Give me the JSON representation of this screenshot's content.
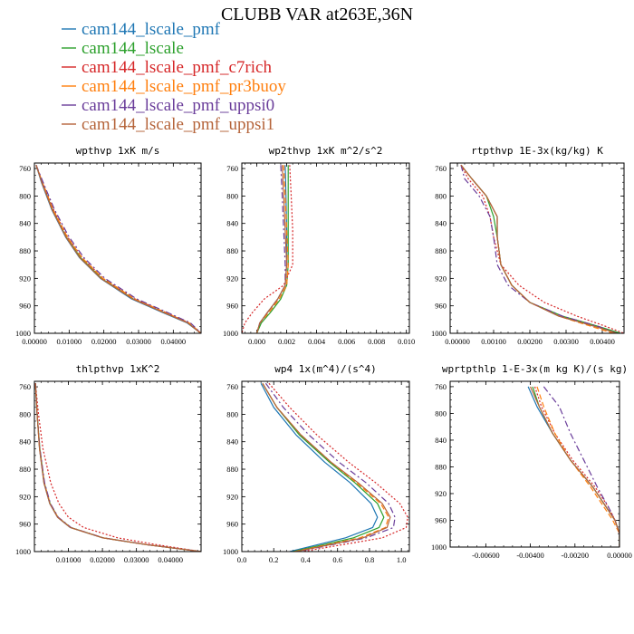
{
  "figure": {
    "title": "CLUBB VAR at263E,36N",
    "series": [
      {
        "name": "cam144_lscale_pmf",
        "color": "#1f77b4",
        "dash": "solid"
      },
      {
        "name": "cam144_lscale",
        "color": "#2ca02c",
        "dash": "solid"
      },
      {
        "name": "cam144_lscale_pmf_c7rich",
        "color": "#d62728",
        "dash": "dotted"
      },
      {
        "name": "cam144_lscale_pmf_pr3buoy",
        "color": "#ff7f0e",
        "dash": "dashed"
      },
      {
        "name": "cam144_lscale_pmf_uppsi0",
        "color": "#6a3d9a",
        "dash": "dashdot"
      },
      {
        "name": "cam144_lscale_pmf_uppsi1",
        "color": "#b5643a",
        "dash": "solid"
      }
    ]
  },
  "chart_data": [
    {
      "type": "line",
      "title": "wpthvp  1xK m/s",
      "xlim": [
        0,
        0.048
      ],
      "xticks": [
        "0.00000",
        "0.01000",
        "0.02000",
        "0.03000",
        "0.04000"
      ],
      "xtickvals": [
        0,
        0.01,
        0.02,
        0.03,
        0.04
      ],
      "ylim": [
        1000,
        752
      ],
      "yticks": [
        "760",
        "800",
        "840",
        "880",
        "920",
        "960",
        "1000"
      ],
      "grid": false,
      "y": [
        755,
        780,
        820,
        860,
        890,
        920,
        950,
        970,
        985,
        1000
      ],
      "series": [
        {
          "values": [
            0.0005,
            0.002,
            0.005,
            0.009,
            0.013,
            0.019,
            0.028,
            0.037,
            0.044,
            0.048
          ]
        },
        {
          "values": [
            0.0005,
            0.0022,
            0.0052,
            0.0092,
            0.0133,
            0.0193,
            0.0285,
            0.0375,
            0.0443,
            0.0479
          ]
        },
        {
          "values": [
            0.0005,
            0.0023,
            0.0055,
            0.0096,
            0.0138,
            0.0198,
            0.029,
            0.038,
            0.0447,
            0.048
          ]
        },
        {
          "values": [
            0.0005,
            0.0023,
            0.0054,
            0.0095,
            0.0137,
            0.0197,
            0.0289,
            0.0379,
            0.0446,
            0.048
          ]
        },
        {
          "values": [
            0.0005,
            0.0025,
            0.0058,
            0.01,
            0.0143,
            0.0203,
            0.0295,
            0.0385,
            0.045,
            0.048
          ]
        },
        {
          "values": [
            0.0005,
            0.0021,
            0.0051,
            0.0091,
            0.0131,
            0.0191,
            0.0283,
            0.0373,
            0.0442,
            0.0479
          ]
        }
      ]
    },
    {
      "type": "line",
      "title": "wp2thvp  1xK m^2/s^2",
      "xlim": [
        -0.001,
        0.0102
      ],
      "xticks": [
        "0.000",
        "0.002",
        "0.004",
        "0.006",
        "0.008",
        "0.010"
      ],
      "xtickvals": [
        0,
        0.002,
        0.004,
        0.006,
        0.008,
        0.01
      ],
      "ylim": [
        1000,
        752
      ],
      "yticks": [
        "760",
        "800",
        "840",
        "880",
        "920",
        "960",
        "1000"
      ],
      "grid": false,
      "y": [
        755,
        800,
        850,
        900,
        930,
        950,
        970,
        985,
        1000
      ],
      "series": [
        {
          "values": [
            0.0019,
            0.00195,
            0.002,
            0.002,
            0.0019,
            0.0014,
            0.0007,
            0.0002,
            0.0
          ]
        },
        {
          "values": [
            0.0021,
            0.0021,
            0.0021,
            0.0021,
            0.002,
            0.0016,
            0.0009,
            0.0003,
            0.0
          ]
        },
        {
          "values": [
            0.0022,
            0.0023,
            0.0024,
            0.0024,
            0.0018,
            0.0005,
            -0.0003,
            -0.0008,
            -0.001
          ]
        },
        {
          "values": [
            0.0018,
            0.0019,
            0.002,
            0.0021,
            0.002,
            0.0015,
            0.0008,
            0.0002,
            0.0
          ]
        },
        {
          "values": [
            0.0016,
            0.0017,
            0.0018,
            0.0019,
            0.0019,
            0.0014,
            0.0007,
            0.0002,
            0.0
          ]
        },
        {
          "values": [
            0.0017,
            0.0018,
            0.0019,
            0.002,
            0.0019,
            0.0014,
            0.0007,
            0.0002,
            0.0
          ]
        }
      ]
    },
    {
      "type": "line",
      "title": "rtpthvp  1E-3x(kg/kg) K",
      "xlim": [
        -0.0002,
        0.0046
      ],
      "xticks": [
        "0.00000",
        "0.00100",
        "0.00200",
        "0.00300",
        "0.00400"
      ],
      "xtickvals": [
        0,
        0.001,
        0.002,
        0.003,
        0.004
      ],
      "ylim": [
        1000,
        752
      ],
      "yticks": [
        "760",
        "800",
        "840",
        "880",
        "920",
        "960",
        "1000"
      ],
      "grid": false,
      "y": [
        755,
        775,
        800,
        830,
        860,
        900,
        930,
        955,
        975,
        990,
        1000
      ],
      "series": [
        {
          "values": [
            0.0001,
            0.0004,
            0.0008,
            0.0011,
            0.0011,
            0.0012,
            0.0015,
            0.002,
            0.0028,
            0.0038,
            0.0045
          ]
        },
        {
          "values": [
            0.0001,
            0.0004,
            0.0008,
            0.001,
            0.0011,
            0.0012,
            0.0015,
            0.002,
            0.0029,
            0.0039,
            0.0045
          ]
        },
        {
          "values": [
            0.0001,
            0.0003,
            0.0007,
            0.0009,
            0.001,
            0.0012,
            0.0017,
            0.0024,
            0.0033,
            0.0041,
            0.0046
          ]
        },
        {
          "values": [
            0.0001,
            0.0004,
            0.0008,
            0.0011,
            0.0011,
            0.0012,
            0.0015,
            0.002,
            0.0028,
            0.0037,
            0.0043
          ]
        },
        {
          "values": [
            0.0001,
            0.0002,
            0.0006,
            0.0009,
            0.001,
            0.0011,
            0.0014,
            0.002,
            0.0029,
            0.0039,
            0.0044
          ]
        },
        {
          "values": [
            0.0001,
            0.0004,
            0.0008,
            0.0011,
            0.0011,
            0.0012,
            0.0015,
            0.002,
            0.0028,
            0.0038,
            0.0044
          ]
        }
      ]
    },
    {
      "type": "line",
      "title": "thlpthvp  1xK^2",
      "xlim": [
        0,
        0.049
      ],
      "xticks": [
        "0.01000",
        "0.02000",
        "0.03000",
        "0.04000"
      ],
      "xtickvals": [
        0.01,
        0.02,
        0.03,
        0.04
      ],
      "ylim": [
        1000,
        752
      ],
      "yticks": [
        "760",
        "800",
        "840",
        "880",
        "920",
        "960",
        "1000"
      ],
      "grid": false,
      "y": [
        755,
        800,
        850,
        900,
        930,
        950,
        965,
        980,
        990,
        1000
      ],
      "series": [
        {
          "values": [
            0.0003,
            0.0008,
            0.0015,
            0.0028,
            0.0045,
            0.0068,
            0.0105,
            0.02,
            0.033,
            0.049
          ]
        },
        {
          "values": [
            0.0003,
            0.0008,
            0.0016,
            0.0029,
            0.0046,
            0.0069,
            0.0107,
            0.0202,
            0.0332,
            0.049
          ]
        },
        {
          "values": [
            0.0003,
            0.0012,
            0.0025,
            0.0048,
            0.0072,
            0.01,
            0.0145,
            0.0245,
            0.036,
            0.049
          ]
        },
        {
          "values": [
            0.0003,
            0.0008,
            0.0015,
            0.0029,
            0.0046,
            0.0069,
            0.0106,
            0.0201,
            0.0331,
            0.049
          ]
        },
        {
          "values": [
            0.0003,
            0.0008,
            0.0016,
            0.003,
            0.0047,
            0.007,
            0.0108,
            0.0203,
            0.0333,
            0.049
          ]
        },
        {
          "values": [
            0.0003,
            0.0008,
            0.0015,
            0.0028,
            0.0045,
            0.0068,
            0.0106,
            0.0201,
            0.0331,
            0.049
          ]
        }
      ]
    },
    {
      "type": "line",
      "title": "wp4  1x(m^4)/(s^4)",
      "xlim": [
        0,
        1.05
      ],
      "xticks": [
        "0.0",
        "0.2",
        "0.4",
        "0.6",
        "0.8",
        "1.0"
      ],
      "xtickvals": [
        0,
        0.2,
        0.4,
        0.6,
        0.8,
        1.0
      ],
      "ylim": [
        1000,
        752
      ],
      "yticks": [
        "760",
        "800",
        "840",
        "880",
        "920",
        "960",
        "1000"
      ],
      "grid": false,
      "y": [
        755,
        790,
        830,
        870,
        900,
        930,
        950,
        965,
        980,
        1000
      ],
      "series": [
        {
          "values": [
            0.12,
            0.2,
            0.34,
            0.52,
            0.68,
            0.81,
            0.85,
            0.82,
            0.65,
            0.3
          ]
        },
        {
          "values": [
            0.13,
            0.22,
            0.36,
            0.55,
            0.71,
            0.85,
            0.89,
            0.86,
            0.7,
            0.32
          ]
        },
        {
          "values": [
            0.17,
            0.3,
            0.47,
            0.67,
            0.84,
            0.99,
            1.04,
            1.03,
            0.88,
            0.38
          ]
        },
        {
          "values": [
            0.13,
            0.22,
            0.37,
            0.56,
            0.72,
            0.87,
            0.92,
            0.9,
            0.74,
            0.33
          ]
        },
        {
          "values": [
            0.15,
            0.26,
            0.42,
            0.61,
            0.78,
            0.92,
            0.96,
            0.95,
            0.78,
            0.35
          ]
        },
        {
          "values": [
            0.13,
            0.22,
            0.37,
            0.56,
            0.73,
            0.88,
            0.93,
            0.91,
            0.76,
            0.34
          ]
        }
      ]
    },
    {
      "type": "line",
      "title": "wprtpthlp  1-E-3x(m kg K)/(s kg)",
      "xlim": [
        -0.0076,
        0
      ],
      "xticks": [
        "-0.00600",
        "-0.00400",
        "-0.00200",
        "0.00000"
      ],
      "xtickvals": [
        -0.006,
        -0.004,
        -0.002,
        0
      ],
      "ylim": [
        1000,
        752
      ],
      "yticks": [
        "760",
        "800",
        "840",
        "880",
        "920",
        "960",
        "1000"
      ],
      "grid": false,
      "y": [
        760,
        790,
        830,
        870,
        910,
        940,
        960,
        980,
        1000
      ],
      "series": [
        {
          "values": [
            -0.0041,
            -0.0037,
            -0.003,
            -0.0022,
            -0.0012,
            -0.0006,
            -0.0002,
            0.0,
            0.0
          ]
        },
        {
          "values": [
            -0.0039,
            -0.0036,
            -0.003,
            -0.0022,
            -0.0012,
            -0.0006,
            -0.0002,
            0.0,
            0.0
          ]
        },
        {
          "values": [
            -0.0038,
            -0.0035,
            -0.0029,
            -0.0021,
            -0.0011,
            -0.0005,
            -0.0002,
            0.0,
            0.0
          ]
        },
        {
          "values": [
            -0.0037,
            -0.0034,
            -0.0029,
            -0.0022,
            -0.0013,
            -0.0007,
            -0.0003,
            0.0,
            0.0
          ]
        },
        {
          "values": [
            -0.0034,
            -0.0027,
            -0.0022,
            -0.0016,
            -0.001,
            -0.0005,
            -0.0002,
            0.0,
            0.0
          ]
        },
        {
          "values": [
            -0.004,
            -0.0036,
            -0.003,
            -0.0022,
            -0.0012,
            -0.0006,
            -0.0002,
            0.0,
            0.0
          ]
        }
      ]
    }
  ]
}
